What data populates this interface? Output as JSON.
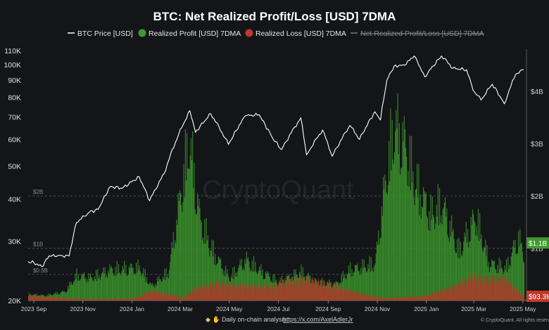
{
  "chart_data": {
    "type": "line",
    "title": "BTC: Net Realized Profit/Loss [USD] 7DMA",
    "legend": {
      "placement": "top-center",
      "items": [
        {
          "label": "BTC Price [USD]",
          "color": "#ffffff",
          "marker": "line"
        },
        {
          "label": "Realized Profit [USD] 7DMA",
          "color": "#3e9a2f",
          "marker": "dot"
        },
        {
          "label": "Realized Loss [USD] 7DMA",
          "color": "#c0392b",
          "marker": "dot"
        },
        {
          "label": "Net Realized Profit/Loss [USD] 7DMA",
          "color": "#8a8a8a",
          "marker": "line",
          "hidden": true
        }
      ]
    },
    "left_axis": {
      "scale": "log",
      "ticks": [
        "20K",
        "30K",
        "40K",
        "50K",
        "60K",
        "70K",
        "80K",
        "90K",
        "100K",
        "110K"
      ],
      "tick_values": [
        20000,
        30000,
        40000,
        50000,
        60000,
        70000,
        80000,
        90000,
        100000,
        110000
      ]
    },
    "right_axis": {
      "ticks": [
        "$1B",
        "$2B",
        "$3B",
        "$4B"
      ],
      "tick_values": [
        1,
        2,
        3,
        4
      ],
      "unit": "B USD"
    },
    "inner_labels": [
      "$0.5B",
      "$1B",
      "$2B"
    ],
    "x_axis": {
      "ticks": [
        "2023 Sep",
        "2023 Nov",
        "2024 Jan",
        "2024 Mar",
        "2024 May",
        "2024 Jul",
        "2024 Sep",
        "2024 Nov",
        "2025 Jan",
        "2025 Mar",
        "2025 May"
      ],
      "range": [
        "2023-08-25",
        "2025-05-02"
      ]
    },
    "value_badges": [
      {
        "label": "$1.1B",
        "color": "#3e9a2f"
      },
      {
        "label": "$93.3M",
        "color": "#c0392b"
      }
    ],
    "price_series": [
      {
        "date": "2023-08-25",
        "value": 26100
      },
      {
        "date": "2023-09-01",
        "value": 25900
      },
      {
        "date": "2023-09-11",
        "value": 25200
      },
      {
        "date": "2023-09-20",
        "value": 27100
      },
      {
        "date": "2023-10-01",
        "value": 27200
      },
      {
        "date": "2023-10-15",
        "value": 27100
      },
      {
        "date": "2023-10-24",
        "value": 34000
      },
      {
        "date": "2023-11-09",
        "value": 36500
      },
      {
        "date": "2023-11-20",
        "value": 37200
      },
      {
        "date": "2023-12-05",
        "value": 43500
      },
      {
        "date": "2023-12-20",
        "value": 43000
      },
      {
        "date": "2024-01-10",
        "value": 46500
      },
      {
        "date": "2024-01-23",
        "value": 39500
      },
      {
        "date": "2024-02-10",
        "value": 47500
      },
      {
        "date": "2024-02-28",
        "value": 62000
      },
      {
        "date": "2024-03-13",
        "value": 73000
      },
      {
        "date": "2024-03-20",
        "value": 63000
      },
      {
        "date": "2024-04-08",
        "value": 71500
      },
      {
        "date": "2024-04-30",
        "value": 58000
      },
      {
        "date": "2024-05-21",
        "value": 70500
      },
      {
        "date": "2024-06-07",
        "value": 71000
      },
      {
        "date": "2024-06-24",
        "value": 60500
      },
      {
        "date": "2024-07-05",
        "value": 56000
      },
      {
        "date": "2024-07-29",
        "value": 69500
      },
      {
        "date": "2024-08-05",
        "value": 54000
      },
      {
        "date": "2024-08-25",
        "value": 64000
      },
      {
        "date": "2024-09-06",
        "value": 53500
      },
      {
        "date": "2024-09-28",
        "value": 66000
      },
      {
        "date": "2024-10-10",
        "value": 60000
      },
      {
        "date": "2024-10-29",
        "value": 72500
      },
      {
        "date": "2024-11-05",
        "value": 68500
      },
      {
        "date": "2024-11-13",
        "value": 90000
      },
      {
        "date": "2024-11-22",
        "value": 99000
      },
      {
        "date": "2024-12-05",
        "value": 99500
      },
      {
        "date": "2024-12-17",
        "value": 106000
      },
      {
        "date": "2024-12-30",
        "value": 92000
      },
      {
        "date": "2025-01-20",
        "value": 106000
      },
      {
        "date": "2025-02-03",
        "value": 97500
      },
      {
        "date": "2025-02-20",
        "value": 96500
      },
      {
        "date": "2025-02-28",
        "value": 84000
      },
      {
        "date": "2025-03-10",
        "value": 78500
      },
      {
        "date": "2025-03-24",
        "value": 87500
      },
      {
        "date": "2025-04-08",
        "value": 76500
      },
      {
        "date": "2025-04-22",
        "value": 93500
      },
      {
        "date": "2025-05-02",
        "value": 96500
      }
    ],
    "profit_series": [
      {
        "date": "2023-08-25",
        "value": 0.15
      },
      {
        "date": "2023-09-15",
        "value": 0.12
      },
      {
        "date": "2023-10-10",
        "value": 0.22
      },
      {
        "date": "2023-10-24",
        "value": 0.62
      },
      {
        "date": "2023-11-10",
        "value": 0.55
      },
      {
        "date": "2023-12-05",
        "value": 0.75
      },
      {
        "date": "2024-01-11",
        "value": 0.8
      },
      {
        "date": "2024-01-25",
        "value": 0.35
      },
      {
        "date": "2024-02-15",
        "value": 0.7
      },
      {
        "date": "2024-02-28",
        "value": 2.3
      },
      {
        "date": "2024-03-12",
        "value": 3.9
      },
      {
        "date": "2024-03-25",
        "value": 2.0
      },
      {
        "date": "2024-04-10",
        "value": 1.2
      },
      {
        "date": "2024-05-01",
        "value": 0.55
      },
      {
        "date": "2024-05-21",
        "value": 1.0
      },
      {
        "date": "2024-06-10",
        "value": 0.7
      },
      {
        "date": "2024-07-01",
        "value": 0.45
      },
      {
        "date": "2024-07-29",
        "value": 0.7
      },
      {
        "date": "2024-08-15",
        "value": 0.45
      },
      {
        "date": "2024-09-10",
        "value": 0.4
      },
      {
        "date": "2024-09-28",
        "value": 0.75
      },
      {
        "date": "2024-10-29",
        "value": 0.9
      },
      {
        "date": "2024-11-12",
        "value": 3.1
      },
      {
        "date": "2024-11-22",
        "value": 4.25
      },
      {
        "date": "2024-12-05",
        "value": 3.8
      },
      {
        "date": "2024-12-17",
        "value": 2.9
      },
      {
        "date": "2025-01-06",
        "value": 2.1
      },
      {
        "date": "2025-01-20",
        "value": 2.35
      },
      {
        "date": "2025-02-10",
        "value": 1.2
      },
      {
        "date": "2025-03-03",
        "value": 2.05
      },
      {
        "date": "2025-03-20",
        "value": 0.9
      },
      {
        "date": "2025-04-10",
        "value": 0.8
      },
      {
        "date": "2025-04-25",
        "value": 1.55
      },
      {
        "date": "2025-05-02",
        "value": 1.1
      }
    ],
    "loss_series": [
      {
        "date": "2023-08-25",
        "value": 0.12
      },
      {
        "date": "2023-09-15",
        "value": 0.08
      },
      {
        "date": "2023-11-01",
        "value": 0.03
      },
      {
        "date": "2024-01-05",
        "value": 0.05
      },
      {
        "date": "2024-01-25",
        "value": 0.22
      },
      {
        "date": "2024-03-05",
        "value": 0.06
      },
      {
        "date": "2024-03-20",
        "value": 0.28
      },
      {
        "date": "2024-04-17",
        "value": 0.4
      },
      {
        "date": "2024-05-01",
        "value": 0.35
      },
      {
        "date": "2024-06-24",
        "value": 0.3
      },
      {
        "date": "2024-07-05",
        "value": 0.42
      },
      {
        "date": "2024-08-05",
        "value": 0.48
      },
      {
        "date": "2024-09-06",
        "value": 0.33
      },
      {
        "date": "2024-10-10",
        "value": 0.15
      },
      {
        "date": "2024-11-10",
        "value": 0.05
      },
      {
        "date": "2024-12-30",
        "value": 0.1
      },
      {
        "date": "2025-02-03",
        "value": 0.3
      },
      {
        "date": "2025-02-28",
        "value": 0.55
      },
      {
        "date": "2025-03-10",
        "value": 0.48
      },
      {
        "date": "2025-04-08",
        "value": 0.5
      },
      {
        "date": "2025-05-02",
        "value": 0.0933
      }
    ]
  },
  "watermark": "CryptoQuant",
  "footer": {
    "analysis_label": "Daily on-chain analysis:",
    "analysis_link": "https://x.com/AxelAdlerJr",
    "copyright": "© CryptoQuant. All rights reserved"
  }
}
